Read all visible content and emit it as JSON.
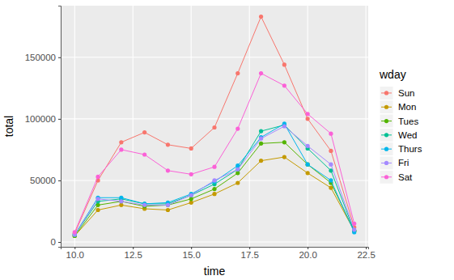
{
  "chart_data": {
    "type": "line",
    "x_label": "time",
    "y_label": "total",
    "legend_title": "wday",
    "legend": "right",
    "grid": true,
    "marker": "circle",
    "line_style": "solid",
    "x": [
      10,
      11,
      12,
      13,
      14,
      15,
      16,
      17,
      18,
      19,
      20,
      21,
      22
    ],
    "xlim": [
      9.4,
      22.6
    ],
    "xticks": [
      {
        "value": 10,
        "label": "10.0"
      },
      {
        "value": 12.5,
        "label": "12.5"
      },
      {
        "value": 15,
        "label": "15.0"
      },
      {
        "value": 17.5,
        "label": "17.5"
      },
      {
        "value": 20,
        "label": "20.0"
      },
      {
        "value": 22.5,
        "label": "22.5"
      }
    ],
    "ylim": [
      -3900,
      191900
    ],
    "yticks": [
      0,
      50000,
      100000,
      150000
    ],
    "series": [
      {
        "name": "Sun",
        "color": "#F8766D",
        "values": [
          7000,
          50000,
          81000,
          89000,
          79000,
          76000,
          93000,
          137000,
          183000,
          144000,
          100000,
          74000,
          12000
        ]
      },
      {
        "name": "Mon",
        "color": "#C49A00",
        "values": [
          5000,
          26000,
          30000,
          27000,
          26000,
          32000,
          39000,
          48000,
          66000,
          69000,
          56000,
          44000,
          9000
        ]
      },
      {
        "name": "Tues",
        "color": "#53B400",
        "values": [
          5000,
          30000,
          33000,
          29000,
          30000,
          35000,
          43000,
          56000,
          80000,
          81000,
          63000,
          48000,
          9000
        ]
      },
      {
        "name": "Wed",
        "color": "#00C094",
        "values": [
          6000,
          33000,
          35000,
          31000,
          31000,
          38000,
          47000,
          59000,
          90000,
          95000,
          76000,
          58000,
          9000
        ]
      },
      {
        "name": "Thurs",
        "color": "#00B6EB",
        "values": [
          6000,
          36000,
          36000,
          31000,
          32000,
          39000,
          49000,
          62000,
          85000,
          96000,
          63000,
          50000,
          8000
        ]
      },
      {
        "name": "Fri",
        "color": "#A58AFF",
        "values": [
          6000,
          35000,
          33000,
          30000,
          30000,
          38000,
          50000,
          59000,
          84000,
          94000,
          78000,
          63000,
          10000
        ]
      },
      {
        "name": "Sat",
        "color": "#FB61D7",
        "values": [
          8000,
          53000,
          75000,
          71000,
          58000,
          55000,
          61000,
          92000,
          137000,
          127000,
          104000,
          88000,
          15000
        ]
      }
    ]
  }
}
